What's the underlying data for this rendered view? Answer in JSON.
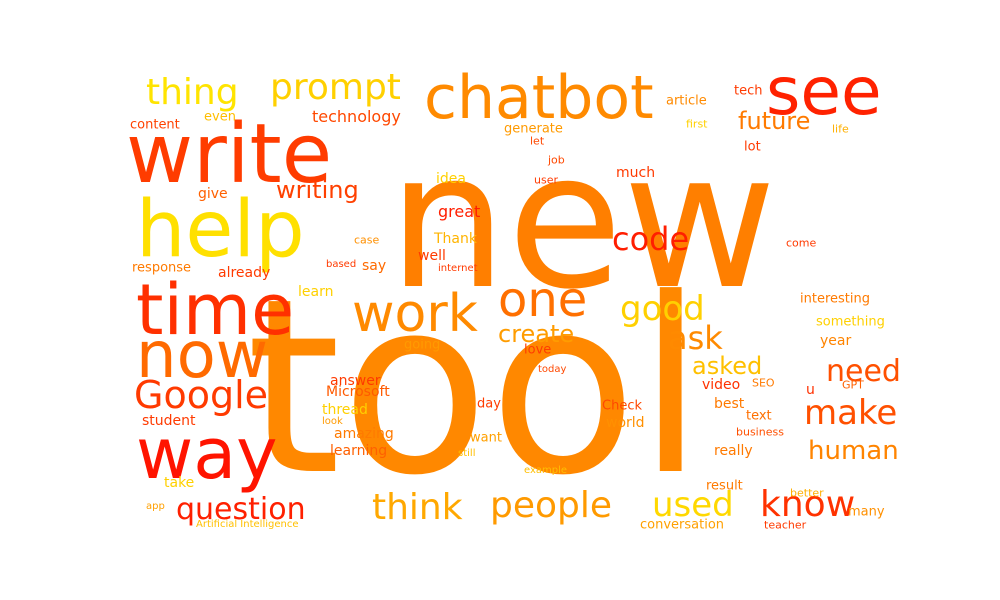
{
  "words": [
    {
      "text": "new",
      "color": "#ff7f00"
    },
    {
      "text": "tool",
      "color": "#ff8800"
    },
    {
      "text": "write",
      "color": "#ff3c00"
    },
    {
      "text": "chatbot",
      "color": "#ff8a00"
    },
    {
      "text": "see",
      "color": "#ff2200"
    },
    {
      "text": "help",
      "color": "#ffe000"
    },
    {
      "text": "time",
      "color": "#ff3000"
    },
    {
      "text": "now",
      "color": "#ff6a00"
    },
    {
      "text": "way",
      "color": "#ff1400"
    },
    {
      "text": "work",
      "color": "#ff8a00"
    },
    {
      "text": "one",
      "color": "#ff7000"
    },
    {
      "text": "Google",
      "color": "#ff3a00"
    },
    {
      "text": "prompt",
      "color": "#ffd000"
    },
    {
      "text": "thing",
      "color": "#ffe400"
    },
    {
      "text": "people",
      "color": "#ff9a00"
    },
    {
      "text": "think",
      "color": "#ffa800"
    },
    {
      "text": "know",
      "color": "#ff3200"
    },
    {
      "text": "question",
      "color": "#ff2000"
    },
    {
      "text": "used",
      "color": "#ffd800"
    },
    {
      "text": "make",
      "color": "#ff5000"
    },
    {
      "text": "good",
      "color": "#ffd000"
    },
    {
      "text": "code",
      "color": "#ff1e00"
    },
    {
      "text": "ask",
      "color": "#ff8a00"
    },
    {
      "text": "need",
      "color": "#ff5000"
    },
    {
      "text": "asked",
      "color": "#ffc000"
    },
    {
      "text": "human",
      "color": "#ff8400"
    },
    {
      "text": "future",
      "color": "#ff7a00"
    },
    {
      "text": "writing",
      "color": "#ff4000"
    },
    {
      "text": "create",
      "color": "#ff9c00"
    },
    {
      "text": "technology",
      "color": "#ff4800"
    },
    {
      "text": "great",
      "color": "#ff1e00"
    },
    {
      "text": "content",
      "color": "#ff4200"
    },
    {
      "text": "even",
      "color": "#ffbe00"
    },
    {
      "text": "give",
      "color": "#ff6000"
    },
    {
      "text": "response",
      "color": "#ff7a00"
    },
    {
      "text": "already",
      "color": "#ff3a00"
    },
    {
      "text": "idea",
      "color": "#ffd000"
    },
    {
      "text": "Thank",
      "color": "#ffb400"
    },
    {
      "text": "well",
      "color": "#ff3a00"
    },
    {
      "text": "say",
      "color": "#ff6a00"
    },
    {
      "text": "learn",
      "color": "#ffd000"
    },
    {
      "text": "going",
      "color": "#ff9a00"
    },
    {
      "text": "answer",
      "color": "#ff3a00"
    },
    {
      "text": "Microsoft",
      "color": "#ff5a00"
    },
    {
      "text": "thread",
      "color": "#ffd000"
    },
    {
      "text": "student",
      "color": "#ff3a00"
    },
    {
      "text": "amazing",
      "color": "#ff7a00"
    },
    {
      "text": "learning",
      "color": "#ff6000"
    },
    {
      "text": "take",
      "color": "#ffd000"
    },
    {
      "text": "day",
      "color": "#ff3c00"
    },
    {
      "text": "want",
      "color": "#ffa000"
    },
    {
      "text": "Check",
      "color": "#ff4800"
    },
    {
      "text": "world",
      "color": "#ff9000"
    },
    {
      "text": "best",
      "color": "#ff7a00"
    },
    {
      "text": "text",
      "color": "#ff7000"
    },
    {
      "text": "really",
      "color": "#ff7a00"
    },
    {
      "text": "video",
      "color": "#ff3200"
    },
    {
      "text": "year",
      "color": "#ff8400"
    },
    {
      "text": "interesting",
      "color": "#ff7a00"
    },
    {
      "text": "something",
      "color": "#ffd000"
    },
    {
      "text": "lot",
      "color": "#ff3a00"
    },
    {
      "text": "much",
      "color": "#ff3a00"
    },
    {
      "text": "article",
      "color": "#ff8a00"
    },
    {
      "text": "tech",
      "color": "#ff3a00"
    },
    {
      "text": "generate",
      "color": "#ff9a00"
    },
    {
      "text": "love",
      "color": "#ff3c00"
    },
    {
      "text": "conversation",
      "color": "#ffa000"
    },
    {
      "text": "result",
      "color": "#ff7a00"
    },
    {
      "text": "many",
      "color": "#ff9000"
    },
    {
      "text": "teacher",
      "color": "#ff3a00"
    },
    {
      "text": "better",
      "color": "#ffb000"
    },
    {
      "text": "business",
      "color": "#ff5000"
    },
    {
      "text": "SEO",
      "color": "#ff7a00"
    },
    {
      "text": "GPT",
      "color": "#ff6000"
    },
    {
      "text": "u",
      "color": "#ff3000"
    },
    {
      "text": "come",
      "color": "#ff3a00"
    },
    {
      "text": "user",
      "color": "#ff3a00"
    },
    {
      "text": "job",
      "color": "#ff4800"
    },
    {
      "text": "first",
      "color": "#ffd000"
    },
    {
      "text": "life",
      "color": "#ffb000"
    },
    {
      "text": "let",
      "color": "#ff4800"
    },
    {
      "text": "case",
      "color": "#ff9000"
    },
    {
      "text": "based",
      "color": "#ff3a00"
    },
    {
      "text": "internet",
      "color": "#ff3a00"
    },
    {
      "text": "look",
      "color": "#ff9a00"
    },
    {
      "text": "still",
      "color": "#ffbe00"
    },
    {
      "text": "example",
      "color": "#ffbe00"
    },
    {
      "text": "today",
      "color": "#ff4800"
    },
    {
      "text": "app",
      "color": "#ffa000"
    },
    {
      "text": "Artificial Intelligence",
      "color": "#ffc000"
    }
  ]
}
